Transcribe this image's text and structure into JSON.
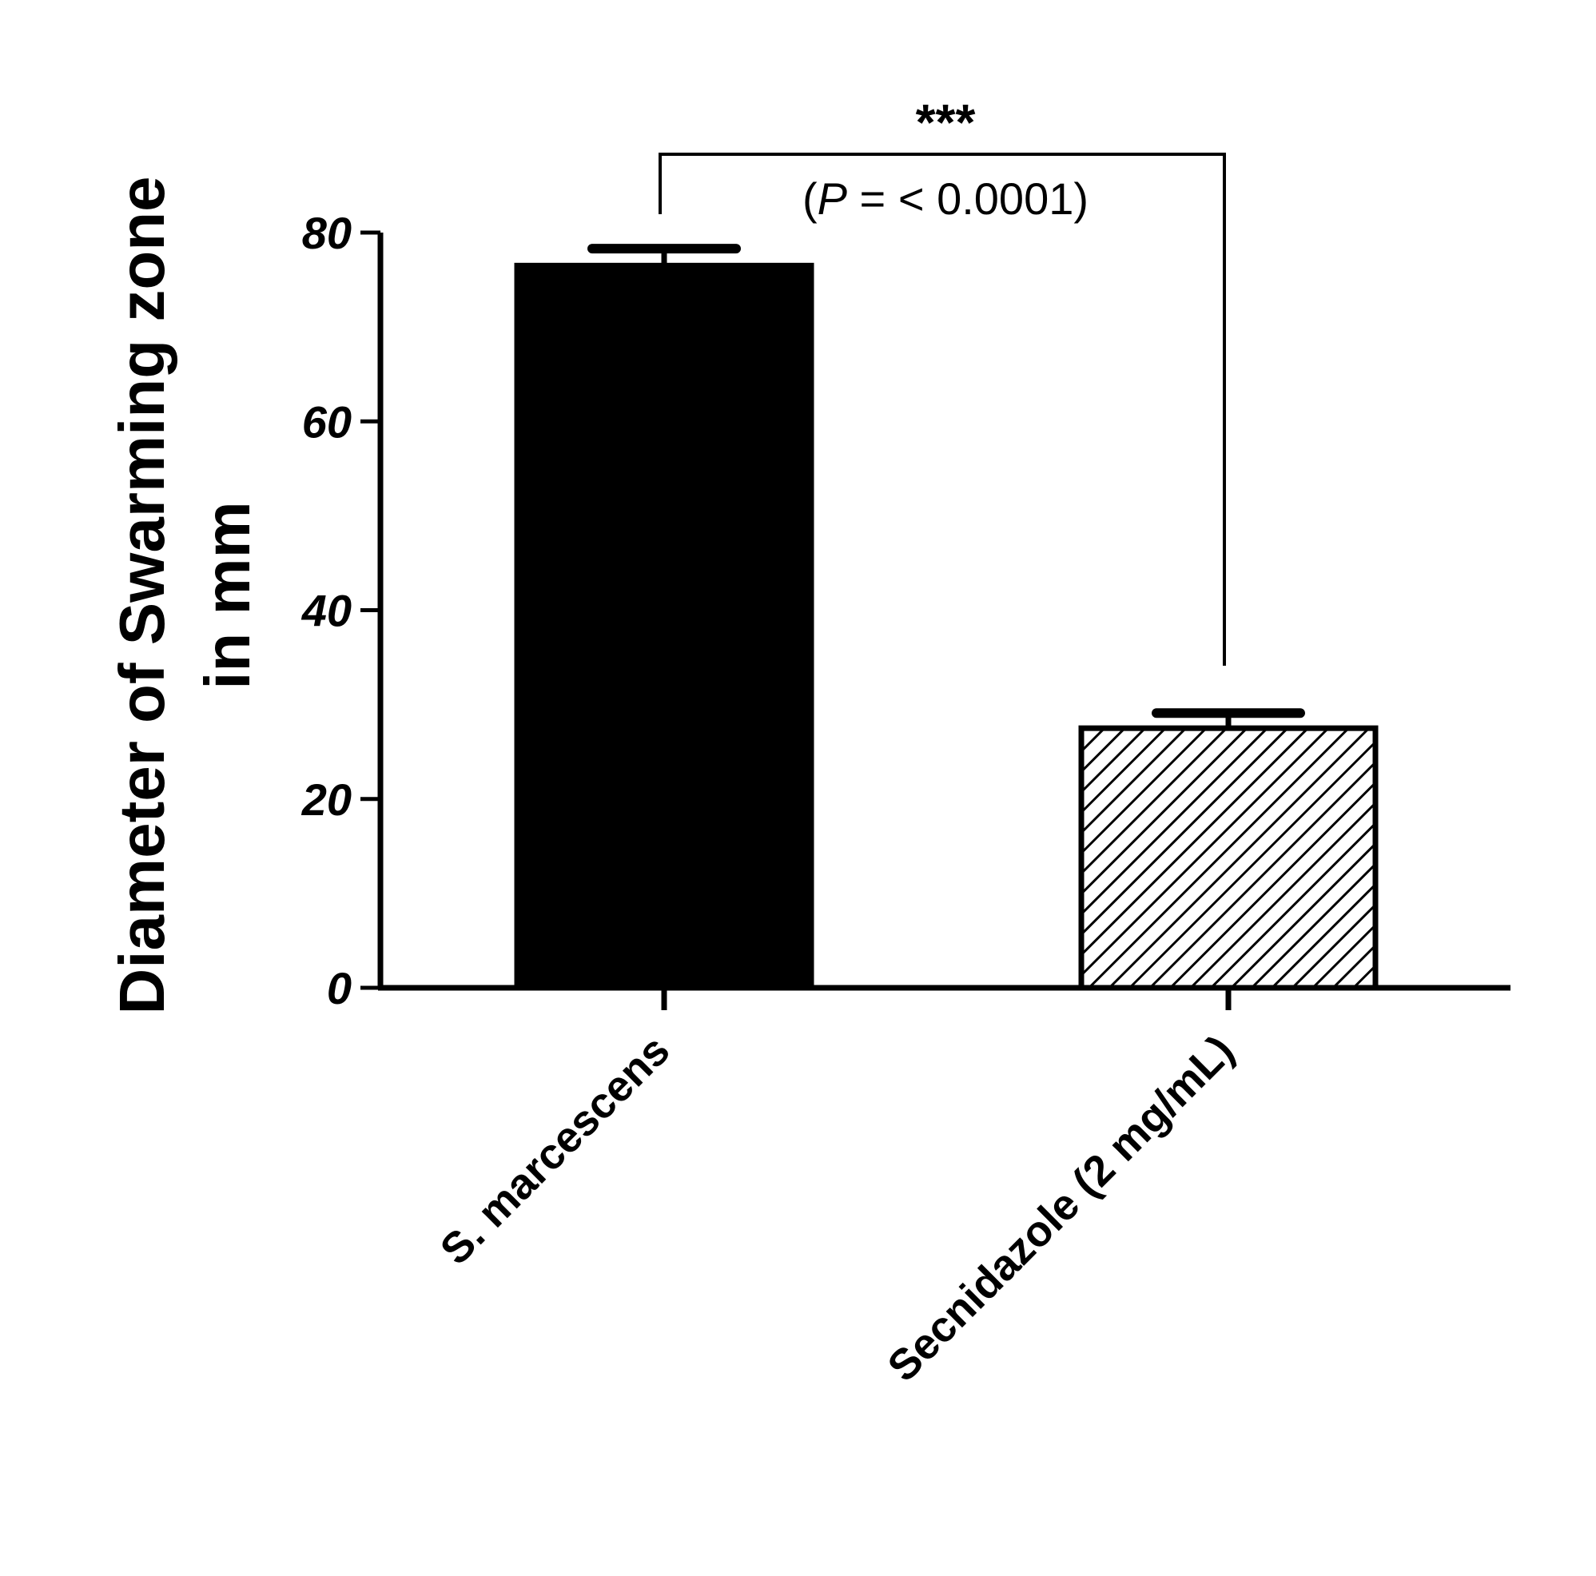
{
  "chart_data": {
    "type": "bar",
    "categories": [
      "S. marcescens",
      "Secnidazole (2 mg/mL)"
    ],
    "values": [
      76.5,
      27.5
    ],
    "errors": [
      1.8,
      1.6
    ],
    "fills": [
      "solid",
      "hatched"
    ],
    "title": "",
    "xlabel": "",
    "ylabel_lines": [
      "Diameter of Swarming zone",
      "in mm"
    ],
    "ylim": [
      0,
      80
    ],
    "yticks": [
      "0",
      "20",
      "40",
      "60",
      "80"
    ],
    "grid": false,
    "significance": {
      "stars": "***",
      "p_prefix": "(",
      "p_symbol": "P",
      "p_text": " = < 0.0001)"
    },
    "colors": {
      "bar": "#000000",
      "axis": "#000000",
      "background": "#ffffff"
    }
  }
}
